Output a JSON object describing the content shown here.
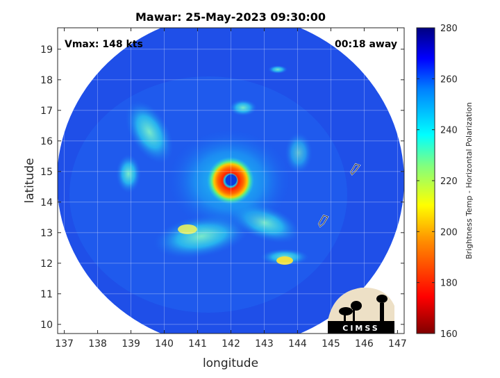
{
  "chart_data": {
    "type": "heatmap",
    "title": "Mawar: 25-May-2023 09:30:00",
    "xlabel": "longitude",
    "ylabel": "latitude",
    "xlim": [
      136.8,
      147.2
    ],
    "ylim": [
      9.7,
      19.7
    ],
    "x_ticks": [
      137,
      138,
      139,
      140,
      141,
      142,
      143,
      144,
      145,
      146,
      147
    ],
    "y_ticks": [
      10,
      11,
      12,
      13,
      14,
      15,
      16,
      17,
      18,
      19
    ],
    "grid": true,
    "annotation_left": "Vmax: 148 kts",
    "annotation_right": "00:18 away",
    "colorbar": {
      "label": "Brightness Temp - Horizontal Polarization",
      "min": 160,
      "max": 280,
      "ticks": [
        160,
        180,
        200,
        220,
        240,
        260,
        280
      ]
    },
    "storm_center": {
      "lon": 142.0,
      "lat": 14.7
    },
    "logo_text": "CIMSS"
  }
}
